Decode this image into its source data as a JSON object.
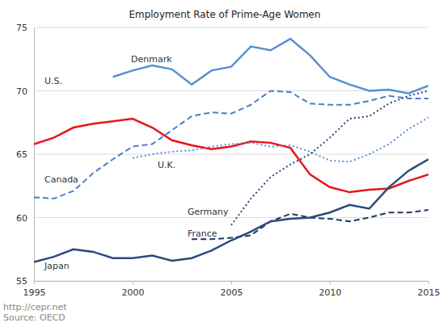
{
  "chart_data": {
    "type": "line",
    "title": "Employment Rate of Prime-Age Women",
    "annotations": [
      "http://cepr.net",
      "Source: OECD"
    ],
    "x": [
      1995,
      1996,
      1997,
      1998,
      1999,
      2000,
      2001,
      2002,
      2003,
      2004,
      2005,
      2006,
      2007,
      2008,
      2009,
      2010,
      2011,
      2012,
      2013,
      2014,
      2015
    ],
    "xlim": [
      1995,
      2015
    ],
    "xticks": [
      1995,
      2000,
      2005,
      2010,
      2015
    ],
    "ylim": [
      55,
      75
    ],
    "yticks": [
      55,
      60,
      65,
      70,
      75
    ],
    "grid": true,
    "series": [
      {
        "name": "Denmark",
        "color": "#5b8fd3",
        "line_style": "solid",
        "values": [
          null,
          null,
          null,
          null,
          71.1,
          71.6,
          72.0,
          71.7,
          70.5,
          71.6,
          71.9,
          73.5,
          73.2,
          74.1,
          72.8,
          71.1,
          70.5,
          70.0,
          70.1,
          69.8,
          70.4
        ]
      },
      {
        "name": "U.S.",
        "color": "#e8141c",
        "line_style": "solid",
        "values": [
          65.8,
          66.3,
          67.1,
          67.4,
          67.6,
          67.8,
          67.1,
          66.1,
          65.7,
          65.4,
          65.6,
          66.0,
          65.9,
          65.5,
          63.4,
          62.4,
          62.0,
          62.2,
          62.3,
          62.9,
          63.4
        ]
      },
      {
        "name": "Canada",
        "color": "#4a7fc8",
        "line_style": "dashed",
        "values": [
          61.6,
          61.5,
          62.1,
          63.5,
          64.6,
          65.6,
          65.8,
          66.9,
          68.0,
          68.3,
          68.2,
          68.9,
          70.0,
          69.9,
          69.0,
          68.9,
          68.9,
          69.2,
          69.6,
          69.4,
          69.4
        ]
      },
      {
        "name": "U.K.",
        "color": "#5b8fd3",
        "line_style": "dotted",
        "values": [
          null,
          null,
          null,
          null,
          null,
          64.7,
          65.0,
          65.2,
          65.3,
          65.6,
          65.8,
          65.9,
          65.6,
          65.7,
          65.2,
          64.5,
          64.4,
          65.0,
          65.8,
          67.0,
          67.9
        ]
      },
      {
        "name": "Germany",
        "color": "#2a4a7a",
        "line_style": "dotted",
        "values": [
          null,
          null,
          null,
          null,
          null,
          null,
          null,
          null,
          null,
          null,
          59.4,
          61.5,
          63.2,
          64.2,
          65.0,
          66.3,
          67.8,
          68.0,
          69.0,
          69.6,
          70.0
        ]
      },
      {
        "name": "France",
        "color": "#1f3b63",
        "line_style": "dashed",
        "values": [
          null,
          null,
          null,
          null,
          null,
          null,
          null,
          null,
          58.3,
          58.3,
          58.4,
          58.6,
          59.7,
          60.3,
          60.0,
          59.9,
          59.7,
          60.0,
          60.4,
          60.4,
          60.6
        ]
      },
      {
        "name": "Japan",
        "color": "#2a4a7a",
        "line_style": "solid",
        "values": [
          56.5,
          56.9,
          57.5,
          57.3,
          56.8,
          56.8,
          57.0,
          56.6,
          56.8,
          57.4,
          58.2,
          58.9,
          59.7,
          59.9,
          60.0,
          60.4,
          61.0,
          60.7,
          62.4,
          63.7,
          64.6
        ]
      }
    ]
  }
}
